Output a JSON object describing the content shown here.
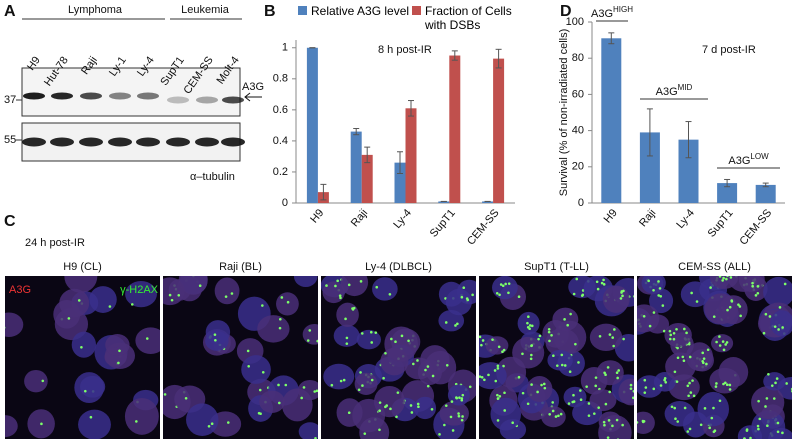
{
  "panel_a": {
    "label": "A",
    "groups": [
      "Lymphoma",
      "Leukemia"
    ],
    "lanes": [
      "H9",
      "Hut-78",
      "Raji",
      "Ly-1",
      "Ly-4",
      "SupT1",
      "CEM-SS",
      "Molt-4"
    ],
    "band_label": "A3G",
    "markers": [
      "37",
      "55"
    ],
    "loading_label": "α–tubulin"
  },
  "chart_data": [
    {
      "type": "bar",
      "panel_label": "B",
      "annotation": "8 h post-IR",
      "categories": [
        "H9",
        "Raji",
        "Ly-4",
        "SupT1",
        "CEM-SS"
      ],
      "series": [
        {
          "name": "Relative A3G level",
          "color": "#4f81bd",
          "values": [
            1.0,
            0.46,
            0.26,
            0.01,
            0.01
          ],
          "errors": [
            0,
            0.02,
            0.07,
            0,
            0
          ]
        },
        {
          "name": "Fraction of Cells with DSBs",
          "color": "#c0504d",
          "values": [
            0.07,
            0.31,
            0.61,
            0.95,
            0.93
          ],
          "errors": [
            0.05,
            0.05,
            0.05,
            0.03,
            0.06
          ]
        }
      ],
      "ylim": [
        0,
        1.05
      ],
      "yticks": [
        0,
        0.2,
        0.4,
        0.6,
        0.8,
        1
      ]
    },
    {
      "type": "bar",
      "panel_label": "D",
      "annotation": "7 d post-IR",
      "ylabel": "Survival (% of non-irradiated cells)",
      "categories": [
        "H9",
        "Raji",
        "Ly-4",
        "SupT1",
        "CEM-SS"
      ],
      "series": [
        {
          "color": "#4f81bd",
          "values": [
            91,
            39,
            35,
            11,
            10
          ],
          "errors": [
            3,
            13,
            10,
            2,
            1
          ]
        }
      ],
      "group_labels": [
        {
          "text": "A3G",
          "sup": "HIGH"
        },
        {
          "text": "A3G",
          "sup": "MID"
        },
        {
          "text": "A3G",
          "sup": "LOW"
        }
      ],
      "ylim": [
        0,
        100
      ],
      "yticks": [
        0,
        20,
        40,
        60,
        80,
        100
      ]
    }
  ],
  "panel_c": {
    "label": "C",
    "condition": "24 h post-IR",
    "stain_labels": [
      "A3G",
      "γ-H2AX"
    ],
    "images": [
      "H9 (CL)",
      "Raji (BL)",
      "Ly-4 (DLBCL)",
      "SupT1 (T-LL)",
      "CEM-SS (ALL)"
    ]
  }
}
